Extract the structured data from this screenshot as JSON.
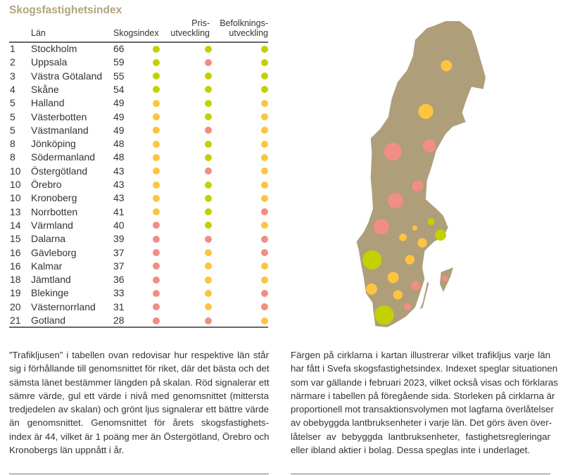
{
  "title": "Skogsfastighetsindex",
  "colors": {
    "green": "#c3d100",
    "yellow": "#fec440",
    "red": "#f18d85",
    "map": "#ae9e7a",
    "title": "#b3a37f"
  },
  "table": {
    "headers": {
      "lan": "Län",
      "index": "Skogsindex",
      "pris_1": "Pris-",
      "pris_2": "utveckling",
      "bef_1": "Befolknings-",
      "bef_2": "utveckling"
    },
    "rows": [
      {
        "rank": "1",
        "name": "Stockholm",
        "index": "66",
        "skogsindex": "green",
        "pris": "green",
        "befolkning": "green"
      },
      {
        "rank": "2",
        "name": "Uppsala",
        "index": "59",
        "skogsindex": "green",
        "pris": "red",
        "befolkning": "green"
      },
      {
        "rank": "3",
        "name": "Västra Götaland",
        "index": "55",
        "skogsindex": "green",
        "pris": "green",
        "befolkning": "green"
      },
      {
        "rank": "4",
        "name": "Skåne",
        "index": "54",
        "skogsindex": "green",
        "pris": "green",
        "befolkning": "green"
      },
      {
        "rank": "5",
        "name": "Halland",
        "index": "49",
        "skogsindex": "yellow",
        "pris": "green",
        "befolkning": "yellow"
      },
      {
        "rank": "5",
        "name": "Västerbotten",
        "index": "49",
        "skogsindex": "yellow",
        "pris": "green",
        "befolkning": "yellow"
      },
      {
        "rank": "5",
        "name": "Västmanland",
        "index": "49",
        "skogsindex": "yellow",
        "pris": "red",
        "befolkning": "yellow"
      },
      {
        "rank": "8",
        "name": "Jönköping",
        "index": "48",
        "skogsindex": "yellow",
        "pris": "green",
        "befolkning": "yellow"
      },
      {
        "rank": "8",
        "name": "Södermanland",
        "index": "48",
        "skogsindex": "yellow",
        "pris": "green",
        "befolkning": "yellow"
      },
      {
        "rank": "10",
        "name": "Östergötland",
        "index": "43",
        "skogsindex": "yellow",
        "pris": "red",
        "befolkning": "yellow"
      },
      {
        "rank": "10",
        "name": "Örebro",
        "index": "43",
        "skogsindex": "yellow",
        "pris": "green",
        "befolkning": "yellow"
      },
      {
        "rank": "10",
        "name": "Kronoberg",
        "index": "43",
        "skogsindex": "yellow",
        "pris": "green",
        "befolkning": "yellow"
      },
      {
        "rank": "13",
        "name": "Norrbotten",
        "index": "41",
        "skogsindex": "yellow",
        "pris": "green",
        "befolkning": "red"
      },
      {
        "rank": "14",
        "name": "Värmland",
        "index": "40",
        "skogsindex": "red",
        "pris": "green",
        "befolkning": "yellow"
      },
      {
        "rank": "15",
        "name": "Dalarna",
        "index": "39",
        "skogsindex": "red",
        "pris": "red",
        "befolkning": "red"
      },
      {
        "rank": "16",
        "name": "Gävleborg",
        "index": "37",
        "skogsindex": "red",
        "pris": "yellow",
        "befolkning": "red"
      },
      {
        "rank": "16",
        "name": "Kalmar",
        "index": "37",
        "skogsindex": "red",
        "pris": "yellow",
        "befolkning": "yellow"
      },
      {
        "rank": "18",
        "name": "Jämtland",
        "index": "36",
        "skogsindex": "red",
        "pris": "yellow",
        "befolkning": "yellow"
      },
      {
        "rank": "19",
        "name": "Blekinge",
        "index": "33",
        "skogsindex": "red",
        "pris": "yellow",
        "befolkning": "red"
      },
      {
        "rank": "20",
        "name": "Västernorrland",
        "index": "31",
        "skogsindex": "red",
        "pris": "yellow",
        "befolkning": "red"
      },
      {
        "rank": "21",
        "name": "Gotland",
        "index": "28",
        "skogsindex": "red",
        "pris": "red",
        "befolkning": "yellow"
      }
    ]
  },
  "map": {
    "circles": [
      {
        "color": "yellow"
      },
      {
        "color": "yellow"
      },
      {
        "color": "red"
      },
      {
        "color": "red"
      },
      {
        "color": "red"
      },
      {
        "color": "red"
      },
      {
        "color": "red"
      },
      {
        "color": "green"
      },
      {
        "color": "yellow"
      },
      {
        "color": "yellow"
      },
      {
        "color": "green"
      },
      {
        "color": "yellow"
      },
      {
        "color": "green"
      },
      {
        "color": "yellow"
      },
      {
        "color": "yellow"
      },
      {
        "color": "red"
      },
      {
        "color": "red"
      },
      {
        "color": "yellow"
      },
      {
        "color": "yellow"
      },
      {
        "color": "red"
      },
      {
        "color": "green"
      }
    ]
  },
  "text_left": [
    "”Trafikljusen” i tabellen ovan redovisar hur respektive län står",
    "sig i förhållande till genomsnittet för riket, där det bästa och det",
    "sämsta länet bestämmer längden på skalan. Röd signalerar ett",
    "sämre värde, gul ett värde i nivå med genomsnittet (mittersta",
    "tredjedelen av skalan) och grönt ljus signalerar ett bättre värde",
    "än genomsnittet. Genomsnittet för årets skogsfastighets-",
    "index är 44, vilket är 1 poäng mer än Östergötland, Örebro och",
    "Kronobergs län uppnått i år."
  ],
  "text_right": [
    "Färgen på cirklarna i kartan illustrerar vilket trafikljus varje län",
    "har fått i Svefa skogsfastighetsindex. Indexet speglar situationen",
    "som var gällande i februari 2023, vilket också visas och förklaras",
    "närmare i tabellen på föregående sida. Storleken på cirklarna är",
    "proportionell mot transaktionsvolymen mot lagfarna överlåtelser",
    "av obebyggda lantbruksenheter i varje län. Det görs även över-",
    "låtelser av bebyggda lantbruksenheter, fastighetsregleringar",
    "eller ibland aktier i bolag. Dessa speglas inte i underlaget."
  ]
}
